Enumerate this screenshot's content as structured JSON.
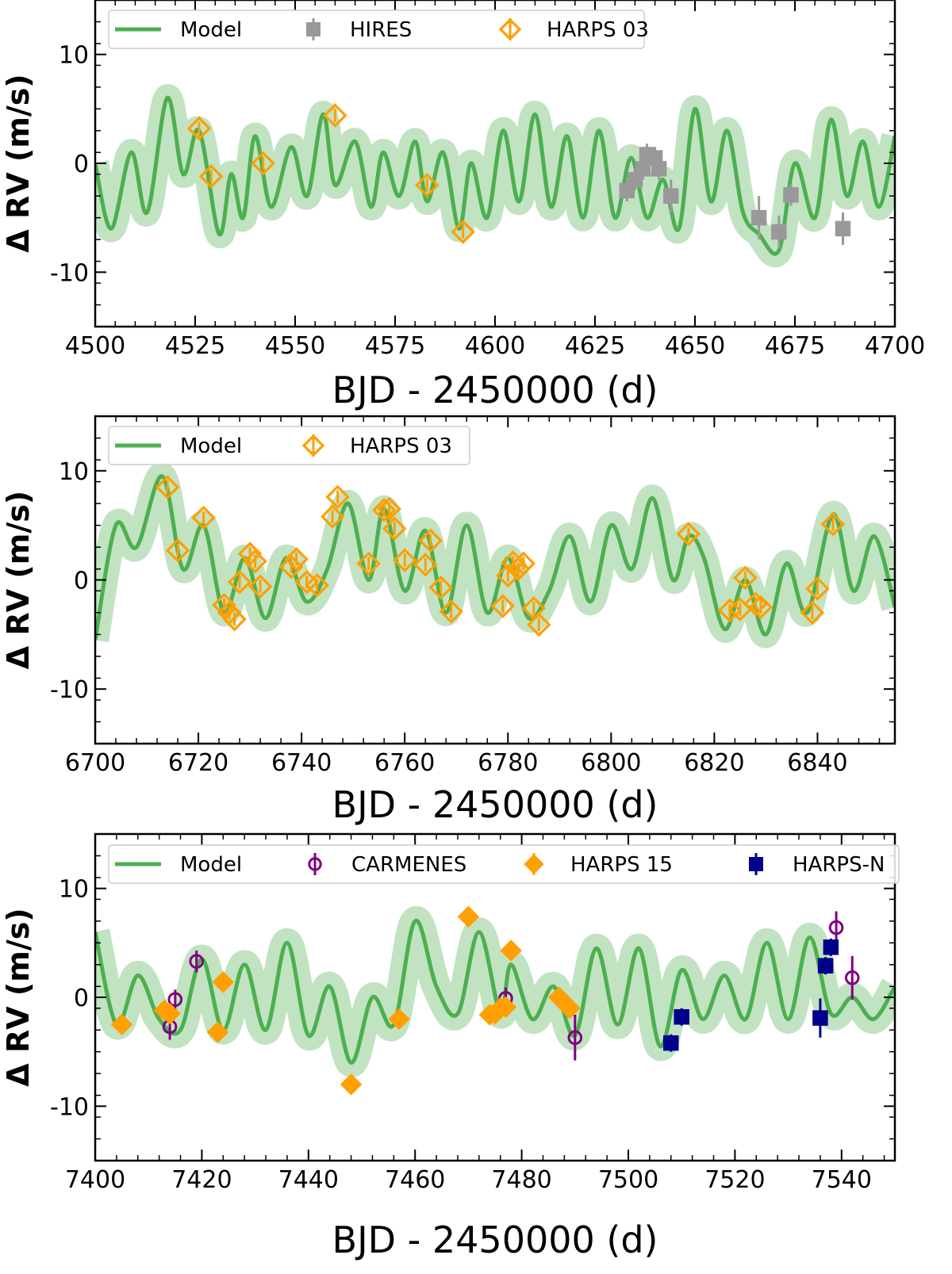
{
  "chart_data": [
    {
      "type": "scatter",
      "title": "",
      "xlabel": "BJD - 2450000 (d)",
      "ylabel": "Δ RV (m/s)",
      "xlim": [
        4500,
        4700
      ],
      "ylim": [
        -15,
        15
      ],
      "xticks": [
        4500,
        4525,
        4550,
        4575,
        4600,
        4625,
        4650,
        4675,
        4700
      ],
      "yticks": [
        -10,
        0,
        10
      ],
      "xtick_labels": [
        "4500",
        "4525",
        "4550",
        "4575",
        "4600",
        "4625",
        "4650",
        "4675",
        "4700"
      ],
      "ytick_labels": [
        "-10",
        "0",
        "10"
      ],
      "legend": [
        "Model",
        "HIRES",
        "HARPS 03"
      ],
      "model": {
        "name": "Model",
        "color": "#4caf50",
        "x": [
          4500,
          4504,
          4509,
          4513,
          4518,
          4522,
          4526,
          4531,
          4534,
          4537,
          4540,
          4544,
          4549,
          4553,
          4557,
          4560,
          4565,
          4569,
          4572,
          4576,
          4580,
          4583,
          4587,
          4591,
          4594,
          4598,
          4602,
          4606,
          4610,
          4614,
          4618,
          4622,
          4626,
          4630,
          4634,
          4638,
          4642,
          4646,
          4650,
          4654,
          4658,
          4662,
          4666,
          4671,
          4675,
          4680,
          4684,
          4688,
          4692,
          4696,
          4700
        ],
        "y": [
          0,
          -6,
          1,
          -4.5,
          6,
          -1,
          3,
          -6.5,
          -1,
          -5,
          2.5,
          -4,
          1.5,
          -3,
          4.5,
          -2,
          2,
          -4,
          1,
          -3,
          2,
          -3.5,
          1,
          -6,
          0,
          -5,
          3,
          -3.5,
          4.5,
          -4,
          2.5,
          -5,
          3,
          -5,
          0.5,
          -5,
          -1.5,
          -6,
          5,
          -3.5,
          3,
          -4.5,
          -6.5,
          -8,
          0,
          -5,
          4,
          -3,
          2,
          -4,
          2.5
        ],
        "band": 1.1
      },
      "series": [
        {
          "name": "HIRES",
          "marker": "filled-square",
          "color": "#999999",
          "x": [
            4633,
            4635,
            4637,
            4638,
            4640,
            4641,
            4644,
            4666,
            4671,
            4674,
            4687
          ],
          "y": [
            -2.5,
            -1.5,
            -0.5,
            0.8,
            0.5,
            -0.5,
            -3,
            -5,
            -6.3,
            -2.9,
            -6
          ],
          "err": [
            1,
            1,
            1,
            1,
            1,
            1,
            1.5,
            2,
            1.5,
            1,
            1.5
          ]
        },
        {
          "name": "HARPS 03",
          "marker": "open-diamond",
          "color": "#ff9f00",
          "x": [
            4526,
            4529,
            4542,
            4560,
            4583,
            4592
          ],
          "y": [
            3.2,
            -1.2,
            0,
            4.4,
            -2,
            -6.3
          ],
          "err": [
            0.6,
            0.6,
            0.6,
            0.6,
            0.6,
            0.6
          ]
        }
      ]
    },
    {
      "type": "scatter",
      "title": "",
      "xlabel": "BJD - 2450000 (d)",
      "ylabel": "Δ RV (m/s)",
      "xlim": [
        6700,
        6855
      ],
      "ylim": [
        -15,
        15
      ],
      "xticks": [
        6700,
        6720,
        6740,
        6760,
        6780,
        6800,
        6820,
        6840
      ],
      "yticks": [
        -10,
        0,
        10
      ],
      "xtick_labels": [
        "6700",
        "6720",
        "6740",
        "6760",
        "6780",
        "6800",
        "6820",
        "6840"
      ],
      "ytick_labels": [
        "-10",
        "0",
        "10"
      ],
      "legend": [
        "Model",
        "HARPS 03"
      ],
      "model": {
        "name": "Model",
        "color": "#4caf50",
        "x": [
          6700,
          6704,
          6708,
          6713,
          6717,
          6721,
          6725,
          6729,
          6733,
          6737,
          6741,
          6745,
          6749,
          6753,
          6756,
          6760,
          6764,
          6768,
          6772,
          6776,
          6780,
          6784,
          6788,
          6792,
          6796,
          6800,
          6804,
          6808,
          6812,
          6815,
          6818,
          6822,
          6826,
          6830,
          6834,
          6838,
          6843,
          6847,
          6851,
          6855
        ],
        "y": [
          -5.5,
          5,
          3,
          9.5,
          1,
          5,
          -3,
          2,
          -3.5,
          2,
          -2,
          1,
          7,
          0,
          6.5,
          -1,
          4.5,
          -3,
          5,
          -3,
          2,
          -3.5,
          -1,
          4,
          -2,
          5,
          1,
          7.5,
          0,
          4,
          2,
          -4.5,
          0,
          -5,
          1.5,
          -3,
          6,
          -1,
          4,
          -2.5
        ],
        "band": 1.1
      },
      "series": [
        {
          "name": "HARPS 03",
          "marker": "open-diamond",
          "color": "#ff9f00",
          "x": [
            6714,
            6716,
            6721,
            6725,
            6726,
            6727,
            6728,
            6730,
            6731,
            6732,
            6738,
            6739,
            6741,
            6743,
            6746,
            6747,
            6753,
            6756,
            6757,
            6758,
            6760,
            6764,
            6765,
            6767,
            6769,
            6779,
            6780,
            6781,
            6782,
            6783,
            6785,
            6786,
            6815,
            6823,
            6825,
            6826,
            6828,
            6829,
            6839,
            6840,
            6843
          ],
          "y": [
            8.5,
            2.7,
            5.7,
            -2.3,
            -3,
            -3.6,
            -0.2,
            2.4,
            1.7,
            -0.6,
            1.2,
            1.9,
            -0.2,
            -0.5,
            5.8,
            7.6,
            1.5,
            6.4,
            6.5,
            4.7,
            1.8,
            1.4,
            3.6,
            -0.7,
            -2.9,
            -2.4,
            0.4,
            1.6,
            1,
            1.5,
            -2.6,
            -4.1,
            4.2,
            -2.8,
            -2.7,
            0.2,
            -2.2,
            -2.5,
            -3,
            -0.8,
            5.1
          ],
          "err": [
            0.6,
            0.6,
            0.6,
            0.6,
            0.6,
            0.6,
            0.6,
            0.6,
            0.6,
            0.6,
            0.6,
            0.6,
            0.6,
            0.6,
            0.6,
            0.6,
            0.6,
            0.6,
            0.6,
            0.6,
            0.6,
            0.6,
            0.6,
            0.6,
            0.6,
            0.6,
            0.6,
            0.6,
            0.6,
            0.6,
            0.6,
            0.6,
            0.6,
            0.6,
            0.6,
            0.6,
            0.6,
            0.6,
            0.6,
            0.6,
            0.6
          ]
        }
      ]
    },
    {
      "type": "scatter",
      "title": "",
      "xlabel": "BJD - 2450000 (d)",
      "ylabel": "Δ RV (m/s)",
      "xlim": [
        7400,
        7550
      ],
      "ylim": [
        -15,
        15
      ],
      "xticks": [
        7400,
        7420,
        7440,
        7460,
        7480,
        7500,
        7520,
        7540
      ],
      "yticks": [
        -10,
        0,
        10
      ],
      "xtick_labels": [
        "7400",
        "7420",
        "7440",
        "7460",
        "7480",
        "7500",
        "7520",
        "7540"
      ],
      "ytick_labels": [
        "-10",
        "0",
        "10"
      ],
      "legend": [
        "Model",
        "CARMENES",
        "HARPS 15",
        "HARPS-N"
      ],
      "model": {
        "name": "Model",
        "color": "#4caf50",
        "x": [
          7400,
          7404,
          7408,
          7412,
          7416,
          7420,
          7424,
          7428,
          7432,
          7436,
          7440,
          7444,
          7448,
          7452,
          7456,
          7460,
          7464,
          7468,
          7472,
          7476,
          7478,
          7482,
          7486,
          7490,
          7494,
          7498,
          7502,
          7506,
          7510,
          7514,
          7518,
          7522,
          7526,
          7530,
          7534,
          7538,
          7542,
          7546,
          7550
        ],
        "y": [
          6,
          -2.5,
          2,
          -2,
          -3,
          3.5,
          -3,
          3,
          -3,
          5,
          -3.5,
          1,
          -6,
          0,
          -2.5,
          7,
          1,
          -1.5,
          6,
          -1.5,
          3,
          -2,
          1,
          -3.5,
          4.5,
          -2.5,
          4.5,
          -4.5,
          2.5,
          -2,
          2,
          -2,
          5,
          -2,
          5.5,
          -1.5,
          0,
          -2,
          1
        ],
        "band": 1.2
      },
      "series": [
        {
          "name": "CARMENES",
          "marker": "open-circle",
          "color": "#800080",
          "x": [
            7414,
            7415,
            7419,
            7477,
            7490,
            7539,
            7542
          ],
          "y": [
            -2.7,
            -0.2,
            3.3,
            -0.1,
            -3.7,
            6.4,
            1.8
          ],
          "err": [
            1.2,
            0.9,
            1,
            1,
            2.1,
            1.5,
            2
          ]
        },
        {
          "name": "HARPS 15",
          "marker": "filled-diamond",
          "color": "#ff9f00",
          "x": [
            7405,
            7413,
            7414,
            7423,
            7424,
            7448,
            7457,
            7470,
            7474,
            7475,
            7476,
            7477,
            7478,
            7487,
            7488,
            7489
          ],
          "y": [
            -2.5,
            -1.2,
            -1.5,
            -3.2,
            1.4,
            -8,
            -2,
            7.4,
            -1.6,
            -1.5,
            -1,
            -0.9,
            4.3,
            0,
            -0.5,
            -1
          ],
          "err": [
            0.6,
            0.6,
            0.6,
            0.6,
            0.6,
            0.6,
            0.6,
            0.6,
            0.6,
            0.6,
            0.6,
            0.6,
            0.6,
            0.6,
            0.6,
            0.6
          ]
        },
        {
          "name": "HARPS-N",
          "marker": "filled-square",
          "color": "#00008b",
          "x": [
            7508,
            7510,
            7536,
            7537,
            7538
          ],
          "y": [
            -4.2,
            -1.8,
            -1.9,
            2.9,
            4.6
          ],
          "err": [
            0.8,
            0.8,
            1.8,
            0.8,
            0.8
          ]
        }
      ]
    }
  ]
}
